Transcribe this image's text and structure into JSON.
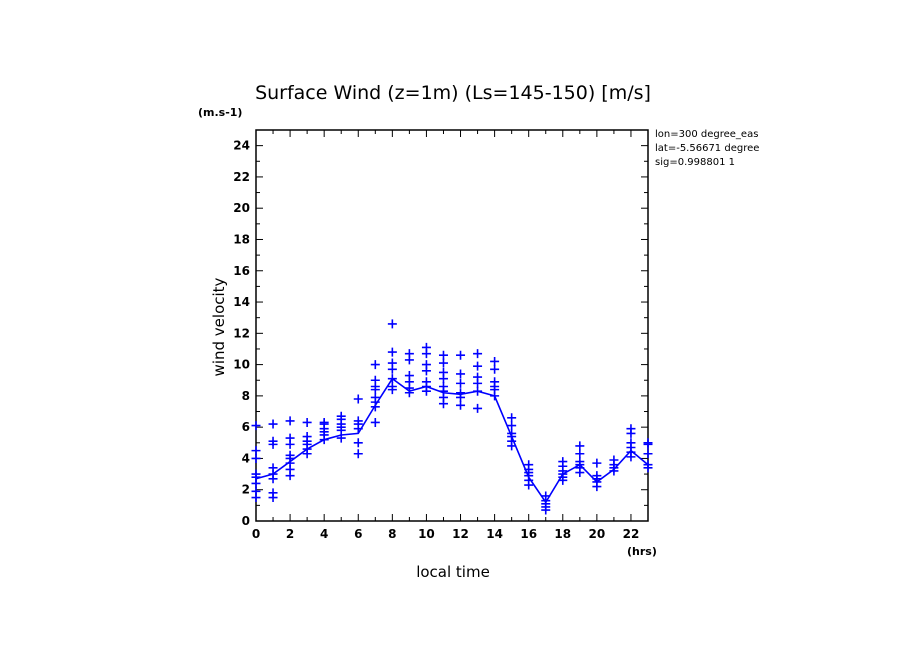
{
  "chart_data": {
    "type": "scatter",
    "title": "Surface Wind (z=1m) (Ls=145-150) [m/s]",
    "xlabel": "local time",
    "ylabel": "wind velocity",
    "x_unit": "(hrs)",
    "y_unit": "(m.s-1)",
    "xlim": [
      0,
      23
    ],
    "ylim": [
      0,
      25
    ],
    "x_ticks": [
      0,
      2,
      4,
      6,
      8,
      10,
      12,
      14,
      16,
      18,
      20,
      22
    ],
    "y_ticks": [
      0,
      2,
      4,
      6,
      8,
      10,
      12,
      14,
      16,
      18,
      20,
      22,
      24
    ],
    "grid": false,
    "annotation_lines": [
      "lon=300 degree_eas",
      "lat=-5.56671 degree",
      "sig=0.998801 1"
    ],
    "colors": {
      "series": "#0000ff",
      "axes": "#000000"
    },
    "series": [
      {
        "type": "line",
        "x": [
          0,
          1,
          2,
          3,
          4,
          5,
          6,
          7,
          8,
          9,
          10,
          11,
          12,
          13,
          14,
          15,
          16,
          17,
          18,
          19,
          20,
          21,
          22,
          23
        ],
        "y": [
          2.7,
          3.0,
          3.8,
          4.6,
          5.2,
          5.5,
          5.6,
          7.4,
          9.1,
          8.3,
          8.6,
          8.2,
          8.1,
          8.3,
          8.0,
          5.4,
          2.8,
          1.2,
          3.0,
          3.6,
          2.5,
          3.3,
          4.5,
          3.6
        ]
      },
      {
        "type": "scatter",
        "marker": "+",
        "points": [
          [
            0,
            1.5
          ],
          [
            0,
            1.9
          ],
          [
            0,
            2.4
          ],
          [
            0,
            2.8
          ],
          [
            0,
            3.0
          ],
          [
            0,
            4.0
          ],
          [
            0,
            4.5
          ],
          [
            0,
            6.1
          ],
          [
            1,
            1.5
          ],
          [
            1,
            1.8
          ],
          [
            1,
            2.7
          ],
          [
            1,
            3.0
          ],
          [
            1,
            3.4
          ],
          [
            1,
            4.9
          ],
          [
            1,
            5.1
          ],
          [
            1,
            6.2
          ],
          [
            2,
            2.9
          ],
          [
            2,
            3.3
          ],
          [
            2,
            3.7
          ],
          [
            2,
            4.0
          ],
          [
            2,
            4.2
          ],
          [
            2,
            4.9
          ],
          [
            2,
            5.3
          ],
          [
            2,
            6.4
          ],
          [
            3,
            4.3
          ],
          [
            3,
            4.6
          ],
          [
            3,
            4.9
          ],
          [
            3,
            5.1
          ],
          [
            3,
            5.4
          ],
          [
            3,
            6.3
          ],
          [
            4,
            5.2
          ],
          [
            4,
            5.5
          ],
          [
            4,
            5.7
          ],
          [
            4,
            5.9
          ],
          [
            4,
            6.2
          ],
          [
            4,
            6.3
          ],
          [
            5,
            5.3
          ],
          [
            5,
            5.8
          ],
          [
            5,
            6.0
          ],
          [
            5,
            6.2
          ],
          [
            5,
            6.5
          ],
          [
            5,
            6.7
          ],
          [
            6,
            4.3
          ],
          [
            6,
            5.0
          ],
          [
            6,
            5.9
          ],
          [
            6,
            6.2
          ],
          [
            6,
            6.4
          ],
          [
            6,
            7.8
          ],
          [
            7,
            6.3
          ],
          [
            7,
            7.3
          ],
          [
            7,
            7.6
          ],
          [
            7,
            7.9
          ],
          [
            7,
            8.4
          ],
          [
            7,
            8.6
          ],
          [
            7,
            9.0
          ],
          [
            7,
            10.0
          ],
          [
            8,
            8.4
          ],
          [
            8,
            8.6
          ],
          [
            8,
            9.1
          ],
          [
            8,
            9.7
          ],
          [
            8,
            10.1
          ],
          [
            8,
            10.8
          ],
          [
            8,
            12.6
          ],
          [
            9,
            8.2
          ],
          [
            9,
            8.5
          ],
          [
            9,
            8.9
          ],
          [
            9,
            9.3
          ],
          [
            9,
            10.3
          ],
          [
            9,
            10.7
          ],
          [
            10,
            8.3
          ],
          [
            10,
            8.6
          ],
          [
            10,
            8.9
          ],
          [
            10,
            9.6
          ],
          [
            10,
            10.0
          ],
          [
            10,
            10.7
          ],
          [
            10,
            11.1
          ],
          [
            11,
            7.5
          ],
          [
            11,
            7.9
          ],
          [
            11,
            8.3
          ],
          [
            11,
            8.6
          ],
          [
            11,
            9.1
          ],
          [
            11,
            9.5
          ],
          [
            11,
            10.1
          ],
          [
            11,
            10.6
          ],
          [
            12,
            7.4
          ],
          [
            12,
            7.9
          ],
          [
            12,
            8.2
          ],
          [
            12,
            8.8
          ],
          [
            12,
            9.4
          ],
          [
            12,
            10.6
          ],
          [
            13,
            7.2
          ],
          [
            13,
            8.3
          ],
          [
            13,
            8.8
          ],
          [
            13,
            9.2
          ],
          [
            13,
            9.9
          ],
          [
            13,
            10.7
          ],
          [
            14,
            8.0
          ],
          [
            14,
            8.4
          ],
          [
            14,
            8.6
          ],
          [
            14,
            8.9
          ],
          [
            14,
            9.7
          ],
          [
            14,
            10.2
          ],
          [
            15,
            4.8
          ],
          [
            15,
            5.1
          ],
          [
            15,
            5.4
          ],
          [
            15,
            5.6
          ],
          [
            15,
            6.1
          ],
          [
            15,
            6.6
          ],
          [
            16,
            2.3
          ],
          [
            16,
            2.6
          ],
          [
            16,
            2.9
          ],
          [
            16,
            3.1
          ],
          [
            16,
            3.3
          ],
          [
            16,
            3.6
          ],
          [
            17,
            0.7
          ],
          [
            17,
            0.9
          ],
          [
            17,
            1.1
          ],
          [
            17,
            1.3
          ],
          [
            17,
            1.6
          ],
          [
            18,
            2.6
          ],
          [
            18,
            2.8
          ],
          [
            18,
            3.0
          ],
          [
            18,
            3.2
          ],
          [
            18,
            3.5
          ],
          [
            18,
            3.8
          ],
          [
            19,
            3.1
          ],
          [
            19,
            3.4
          ],
          [
            19,
            3.6
          ],
          [
            19,
            3.8
          ],
          [
            19,
            4.3
          ],
          [
            19,
            4.8
          ],
          [
            20,
            2.2
          ],
          [
            20,
            2.5
          ],
          [
            20,
            2.7
          ],
          [
            20,
            2.9
          ],
          [
            20,
            3.7
          ],
          [
            21,
            3.2
          ],
          [
            21,
            3.4
          ],
          [
            21,
            3.6
          ],
          [
            21,
            3.9
          ],
          [
            22,
            4.1
          ],
          [
            22,
            4.4
          ],
          [
            22,
            4.7
          ],
          [
            22,
            5.0
          ],
          [
            22,
            5.6
          ],
          [
            22,
            5.9
          ],
          [
            23,
            3.4
          ],
          [
            23,
            3.6
          ],
          [
            23,
            4.3
          ],
          [
            23,
            4.9
          ],
          [
            23,
            5.0
          ]
        ]
      }
    ]
  }
}
